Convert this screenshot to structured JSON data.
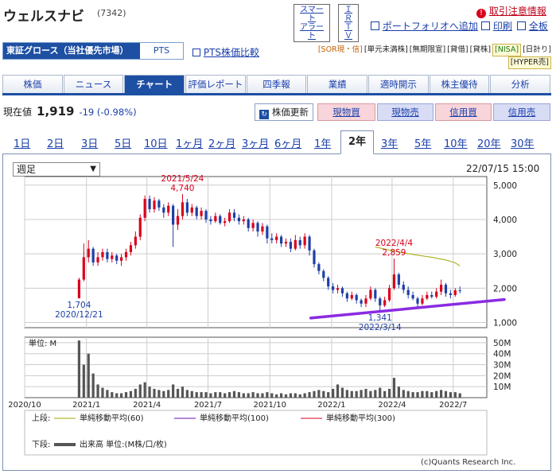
{
  "header": {
    "title": "ウェルスナビ",
    "code": "(7342)",
    "smart_alert_line1": "スマート",
    "smart_alert_line2": "アラート",
    "ir_line1": "ＩＲ",
    "ir_line2": "ＴＶ",
    "caution_link": "取引注意情報",
    "portfolio_link": "ポートフォリオへ追加",
    "print_link": "印刷",
    "full_link": "全板"
  },
  "market": {
    "label": "東証グロース（当社優先市場）",
    "pts_button": "PTS",
    "pts_compare": "PTS株価比較"
  },
  "badges": [
    "[SOR現・信]",
    "[単元未満株]",
    "[無期限宣]",
    "[貸借]",
    "[貸株]",
    "[NISA]",
    "[日計り]",
    "[HYPER売]"
  ],
  "tabs": [
    "株価",
    "ニュース",
    "チャート",
    "評価レポート",
    "四季報",
    "業績",
    "適時開示",
    "株主優待",
    "分析"
  ],
  "active_tab": "チャート",
  "price": {
    "label": "現在値",
    "value": "1,919",
    "change": "-19 (-0.98%)",
    "update_button": "株価更新",
    "buttons": [
      "現物買",
      "現物売",
      "信用買",
      "信用売"
    ]
  },
  "periods": [
    "1日",
    "2日",
    "3日",
    "5日",
    "10日",
    "1ヶ月",
    "2ヶ月",
    "3ヶ月",
    "6ヶ月",
    "1年",
    "2年",
    "3年",
    "5年",
    "10年",
    "20年",
    "30年"
  ],
  "active_period": "2年",
  "chart_select": "週足",
  "chart_datetime": "22/07/15 15:00",
  "colors": {
    "up": "#d9001b",
    "down": "#1f3fa6",
    "ma60": "#a3a800",
    "ma100": "#6a0dad",
    "ma300": "#d9001b",
    "accent": "#1d4fa3",
    "trend": "#8a2be2"
  },
  "chart_data": {
    "type": "candlestick",
    "title": "",
    "xlabel": "",
    "ylabel": "",
    "x_ticks": [
      "2020/10",
      "2021/1",
      "2021/4",
      "2021/7",
      "2021/10",
      "2022/1",
      "2022/4",
      "2022/7"
    ],
    "y_ticks": [
      "1,000",
      "2,000",
      "3,000",
      "4,000",
      "5,000"
    ],
    "ylim": [
      850,
      5250
    ],
    "volume_unit_label": "単位: M",
    "volume_ticks": [
      "10M",
      "20M",
      "30M",
      "40M",
      "50M"
    ],
    "volume_ylim": [
      0,
      55
    ],
    "annotations": [
      {
        "date": "2020/12/21",
        "value": "1,704",
        "kind": "low"
      },
      {
        "date": "2021/5/24",
        "value": "4,740",
        "kind": "high"
      },
      {
        "date": "2022/3/14",
        "value": "1,341",
        "kind": "low"
      },
      {
        "date": "2022/4/4",
        "value": "2,859",
        "kind": "high"
      }
    ],
    "candles_weekly_sample": [
      {
        "week": "2020-12-21",
        "open": 1704,
        "close": 2250,
        "high": 2300,
        "low": 1704
      },
      {
        "week": "2020-12-28",
        "open": 2250,
        "close": 2900,
        "high": 3300,
        "low": 2200
      },
      {
        "week": "2021-01-04",
        "open": 2900,
        "close": 3150,
        "high": 3400,
        "low": 2750
      },
      {
        "week": "2021-01-11",
        "open": 3150,
        "close": 2750,
        "high": 3200,
        "low": 2650
      },
      {
        "week": "2021-01-18",
        "open": 2750,
        "close": 2900,
        "high": 3050,
        "low": 2650
      },
      {
        "week": "2021-01-25",
        "open": 2900,
        "close": 3050,
        "high": 3150,
        "low": 2800
      },
      {
        "week": "2021-02-01",
        "open": 3050,
        "close": 2850,
        "high": 3150,
        "low": 2750
      },
      {
        "week": "2021-02-08",
        "open": 2850,
        "close": 2950,
        "high": 3050,
        "low": 2750
      },
      {
        "week": "2021-02-15",
        "open": 2950,
        "close": 2800,
        "high": 3000,
        "low": 2700
      },
      {
        "week": "2021-02-22",
        "open": 2800,
        "close": 2900,
        "high": 3000,
        "low": 2650
      },
      {
        "week": "2021-03-01",
        "open": 2900,
        "close": 3050,
        "high": 3150,
        "low": 2800
      },
      {
        "week": "2021-03-08",
        "open": 3050,
        "close": 3250,
        "high": 3350,
        "low": 2950
      },
      {
        "week": "2021-03-15",
        "open": 3250,
        "close": 3500,
        "high": 3650,
        "low": 3150
      },
      {
        "week": "2021-03-22",
        "open": 3500,
        "close": 4050,
        "high": 4150,
        "low": 3400
      },
      {
        "week": "2021-03-29",
        "open": 4050,
        "close": 4600,
        "high": 4700,
        "low": 3950
      },
      {
        "week": "2021-04-05",
        "open": 4600,
        "close": 4300,
        "high": 4700,
        "low": 4200
      },
      {
        "week": "2021-04-12",
        "open": 4300,
        "close": 4550,
        "high": 4650,
        "low": 4200
      },
      {
        "week": "2021-04-19",
        "open": 4550,
        "close": 4350,
        "high": 4600,
        "low": 4250
      },
      {
        "week": "2021-04-26",
        "open": 4350,
        "close": 4200,
        "high": 4450,
        "low": 4050
      },
      {
        "week": "2021-05-03",
        "open": 4200,
        "close": 4400,
        "high": 4500,
        "low": 4100
      },
      {
        "week": "2021-05-10",
        "open": 4400,
        "close": 3850,
        "high": 4450,
        "low": 3200
      },
      {
        "week": "2021-05-17",
        "open": 3850,
        "close": 4100,
        "high": 4300,
        "low": 3700
      },
      {
        "week": "2021-05-24",
        "open": 4100,
        "close": 4500,
        "high": 4740,
        "low": 4000
      },
      {
        "week": "2021-05-31",
        "open": 4500,
        "close": 4200,
        "high": 4600,
        "low": 4100
      },
      {
        "week": "2021-06-07",
        "open": 4200,
        "close": 4350,
        "high": 4450,
        "low": 4100
      },
      {
        "week": "2021-06-14",
        "open": 4350,
        "close": 4100,
        "high": 4400,
        "low": 4000
      },
      {
        "week": "2021-06-21",
        "open": 4100,
        "close": 4250,
        "high": 4350,
        "low": 4000
      },
      {
        "week": "2021-06-28",
        "open": 4250,
        "close": 4000,
        "high": 4300,
        "low": 3900
      },
      {
        "week": "2021-07-05",
        "open": 4000,
        "close": 3950,
        "high": 4100,
        "low": 3850
      },
      {
        "week": "2021-07-12",
        "open": 3950,
        "close": 4100,
        "high": 4200,
        "low": 3900
      },
      {
        "week": "2021-07-19",
        "open": 4100,
        "close": 3900,
        "high": 4150,
        "low": 3850
      },
      {
        "week": "2021-07-26",
        "open": 3900,
        "close": 3950,
        "high": 4050,
        "low": 3800
      },
      {
        "week": "2021-08-02",
        "open": 3950,
        "close": 4200,
        "high": 4300,
        "low": 3900
      },
      {
        "week": "2021-08-09",
        "open": 4200,
        "close": 4050,
        "high": 4300,
        "low": 3950
      },
      {
        "week": "2021-08-16",
        "open": 4050,
        "close": 3950,
        "high": 4150,
        "low": 3850
      },
      {
        "week": "2021-08-23",
        "open": 3950,
        "close": 4000,
        "high": 4100,
        "low": 3850
      },
      {
        "week": "2021-08-30",
        "open": 4000,
        "close": 3750,
        "high": 4050,
        "low": 3650
      },
      {
        "week": "2021-09-06",
        "open": 3750,
        "close": 3900,
        "high": 4000,
        "low": 3650
      },
      {
        "week": "2021-09-13",
        "open": 3900,
        "close": 3650,
        "high": 3950,
        "low": 3500
      },
      {
        "week": "2021-09-20",
        "open": 3650,
        "close": 3800,
        "high": 3900,
        "low": 3550
      },
      {
        "week": "2021-09-27",
        "open": 3800,
        "close": 3450,
        "high": 3850,
        "low": 3300
      },
      {
        "week": "2021-10-04",
        "open": 3450,
        "close": 3400,
        "high": 3600,
        "low": 3300
      },
      {
        "week": "2021-10-11",
        "open": 3400,
        "close": 3500,
        "high": 3600,
        "low": 3300
      },
      {
        "week": "2021-10-18",
        "open": 3500,
        "close": 3300,
        "high": 3550,
        "low": 3200
      },
      {
        "week": "2021-10-25",
        "open": 3300,
        "close": 3350,
        "high": 3450,
        "low": 3200
      },
      {
        "week": "2021-11-01",
        "open": 3350,
        "close": 3150,
        "high": 3450,
        "low": 3050
      },
      {
        "week": "2021-11-08",
        "open": 3150,
        "close": 3400,
        "high": 3550,
        "low": 3100
      },
      {
        "week": "2021-11-15",
        "open": 3400,
        "close": 3250,
        "high": 3500,
        "low": 3150
      },
      {
        "week": "2021-11-22",
        "open": 3250,
        "close": 3500,
        "high": 3600,
        "low": 3150
      },
      {
        "week": "2021-11-29",
        "open": 3500,
        "close": 3100,
        "high": 3550,
        "low": 2950
      },
      {
        "week": "2021-12-06",
        "open": 3100,
        "close": 2700,
        "high": 3150,
        "low": 2600
      },
      {
        "week": "2021-12-13",
        "open": 2700,
        "close": 2500,
        "high": 2750,
        "low": 2400
      },
      {
        "week": "2021-12-20",
        "open": 2500,
        "close": 2300,
        "high": 2550,
        "low": 2200
      },
      {
        "week": "2021-12-27",
        "open": 2300,
        "close": 2050,
        "high": 2350,
        "low": 1950
      },
      {
        "week": "2022-01-03",
        "open": 2050,
        "close": 1950,
        "high": 2150,
        "low": 1850
      },
      {
        "week": "2022-01-10",
        "open": 1950,
        "close": 2000,
        "high": 2100,
        "low": 1850
      },
      {
        "week": "2022-01-17",
        "open": 2000,
        "close": 1850,
        "high": 2050,
        "low": 1750
      },
      {
        "week": "2022-01-24",
        "open": 1850,
        "close": 1700,
        "high": 1900,
        "low": 1600
      },
      {
        "week": "2022-01-31",
        "open": 1700,
        "close": 1800,
        "high": 1900,
        "low": 1650
      },
      {
        "week": "2022-02-07",
        "open": 1800,
        "close": 1650,
        "high": 1850,
        "low": 1550
      },
      {
        "week": "2022-02-14",
        "open": 1650,
        "close": 1550,
        "high": 1700,
        "low": 1450
      },
      {
        "week": "2022-02-21",
        "open": 1550,
        "close": 1700,
        "high": 1800,
        "low": 1450
      },
      {
        "week": "2022-02-28",
        "open": 1700,
        "close": 1950,
        "high": 2050,
        "low": 1650
      },
      {
        "week": "2022-03-07",
        "open": 1950,
        "close": 1700,
        "high": 2000,
        "low": 1600
      },
      {
        "week": "2022-03-14",
        "open": 1700,
        "close": 1500,
        "high": 1750,
        "low": 1341
      },
      {
        "week": "2022-03-21",
        "open": 1500,
        "close": 1650,
        "high": 1750,
        "low": 1450
      },
      {
        "week": "2022-03-28",
        "open": 1650,
        "close": 2000,
        "high": 2100,
        "low": 1600
      },
      {
        "week": "2022-04-04",
        "open": 2000,
        "close": 2400,
        "high": 2859,
        "low": 1950
      },
      {
        "week": "2022-04-11",
        "open": 2400,
        "close": 2100,
        "high": 2450,
        "low": 2000
      },
      {
        "week": "2022-04-18",
        "open": 2100,
        "close": 1950,
        "high": 2200,
        "low": 1850
      },
      {
        "week": "2022-04-25",
        "open": 1950,
        "close": 1800,
        "high": 2050,
        "low": 1700
      },
      {
        "week": "2022-05-02",
        "open": 1800,
        "close": 1700,
        "high": 1900,
        "low": 1650
      },
      {
        "week": "2022-05-09",
        "open": 1700,
        "close": 1550,
        "high": 1750,
        "low": 1450
      },
      {
        "week": "2022-05-16",
        "open": 1550,
        "close": 1700,
        "high": 1800,
        "low": 1500
      },
      {
        "week": "2022-05-23",
        "open": 1700,
        "close": 1800,
        "high": 1900,
        "low": 1650
      },
      {
        "week": "2022-05-30",
        "open": 1800,
        "close": 1750,
        "high": 1900,
        "low": 1700
      },
      {
        "week": "2022-06-06",
        "open": 1750,
        "close": 1900,
        "high": 2000,
        "low": 1700
      },
      {
        "week": "2022-06-13",
        "open": 1900,
        "close": 2100,
        "high": 2250,
        "low": 1800
      },
      {
        "week": "2022-06-20",
        "open": 2100,
        "close": 1850,
        "high": 2150,
        "low": 1750
      },
      {
        "week": "2022-06-27",
        "open": 1850,
        "close": 1800,
        "high": 1950,
        "low": 1700
      },
      {
        "week": "2022-07-04",
        "open": 1800,
        "close": 1938,
        "high": 2000,
        "low": 1750
      },
      {
        "week": "2022-07-11",
        "open": 1938,
        "close": 1919,
        "high": 2050,
        "low": 1850
      }
    ],
    "volume_weekly_sample_M": [
      52,
      30,
      40,
      22,
      12,
      9,
      7,
      5,
      4,
      4,
      5,
      6,
      8,
      12,
      14,
      10,
      8,
      7,
      6,
      7,
      12,
      8,
      10,
      7,
      6,
      5,
      5,
      5,
      4,
      5,
      5,
      4,
      5,
      6,
      5,
      4,
      4,
      5,
      4,
      4,
      5,
      4,
      3,
      4,
      3,
      4,
      4,
      3,
      4,
      5,
      6,
      7,
      6,
      5,
      8,
      12,
      9,
      7,
      6,
      6,
      7,
      8,
      6,
      7,
      9,
      6,
      8,
      18,
      10,
      7,
      6,
      5,
      5,
      6,
      6,
      5,
      6,
      7,
      6,
      5,
      5,
      4
    ],
    "moving_average_60_sample": [
      3200,
      3080,
      2980,
      2900,
      2820,
      2740,
      2650
    ],
    "moving_average_60_dates": [
      "2022-03-07",
      "2022-04-04",
      "2022-05-02",
      "2022-05-30",
      "2022-06-20",
      "2022-07-04",
      "2022-07-11"
    ],
    "trendline": {
      "from": [
        "2021-12-01",
        1130
      ],
      "to": [
        "2022-09-15",
        1670
      ]
    },
    "legend": {
      "upper_label": "上段:",
      "lower_label": "下段:",
      "items": [
        "単純移動平均(60)",
        "単純移動平均(100)",
        "単純移動平均(300)"
      ],
      "volume_item": "出来高 単位:(M株/口/枚)"
    },
    "credit": "(c)Quants Research Inc."
  }
}
